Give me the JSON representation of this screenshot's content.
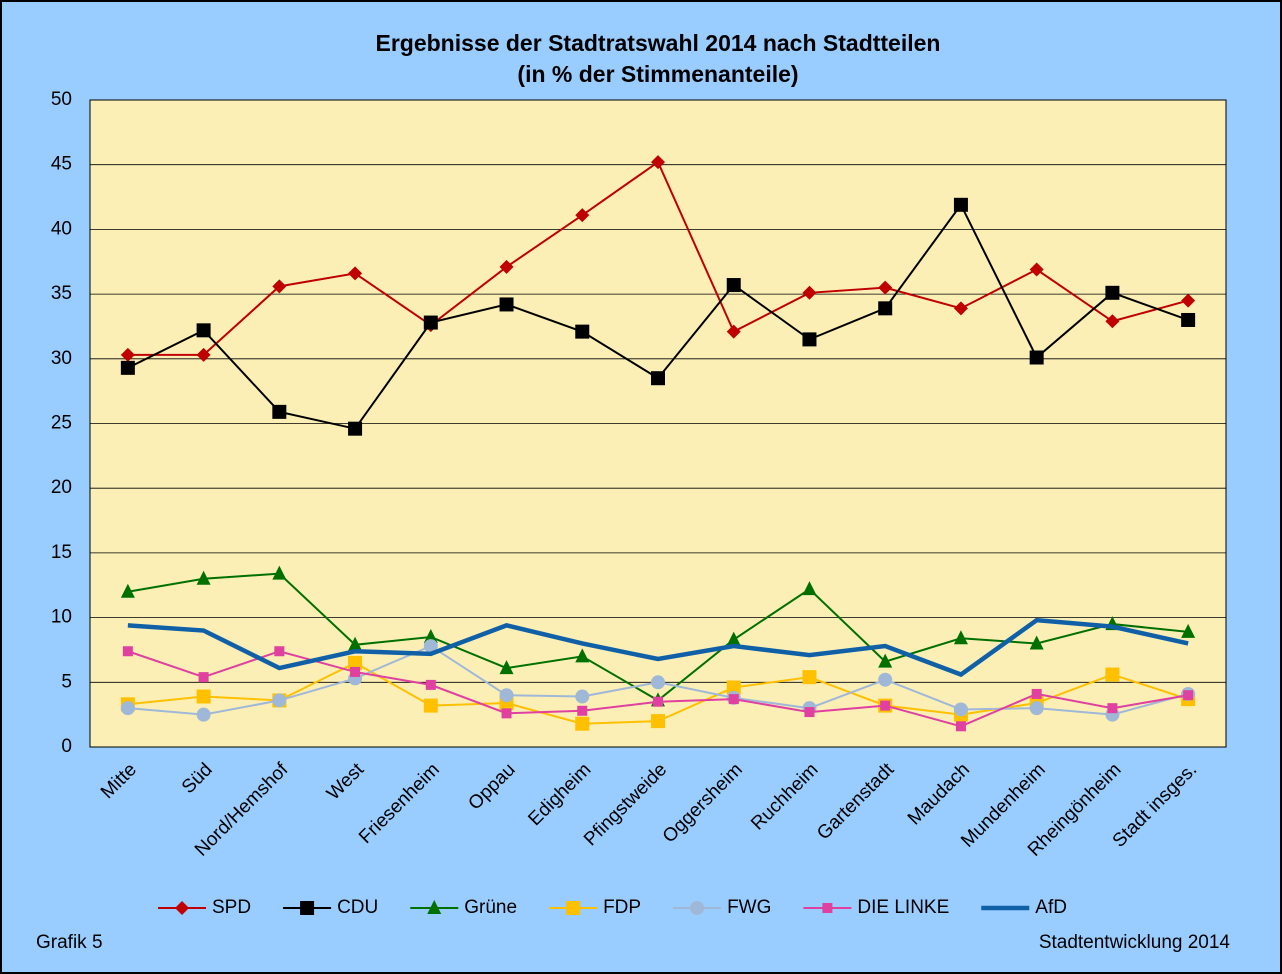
{
  "chart_data": {
    "type": "line",
    "title": [
      "Ergebnisse der Stadtratswahl 2014 nach Stadtteilen",
      "(in % der Stimmenanteile)"
    ],
    "categories": [
      "Mitte",
      "Süd",
      "Nord/Hemshof",
      "West",
      "Friesenheim",
      "Oppau",
      "Edigheim",
      "Pfingstweide",
      "Oggersheim",
      "Ruchheim",
      "Gartenstadt",
      "Maudach",
      "Mundenheim",
      "Rheingönheim",
      "Stadt insges."
    ],
    "series": [
      {
        "name": "SPD",
        "color": "#c00000",
        "marker": "diamond",
        "values": [
          30.3,
          30.3,
          35.6,
          36.6,
          32.6,
          37.1,
          41.1,
          45.2,
          32.1,
          35.1,
          35.5,
          33.9,
          36.9,
          32.9,
          34.5
        ]
      },
      {
        "name": "CDU",
        "color": "#000000",
        "marker": "square",
        "values": [
          29.3,
          32.2,
          25.9,
          24.6,
          32.8,
          34.2,
          32.1,
          28.5,
          35.7,
          31.5,
          33.9,
          41.9,
          30.1,
          35.1,
          33.0
        ]
      },
      {
        "name": "Grüne",
        "color": "#007000",
        "marker": "triangle",
        "values": [
          12.0,
          13.0,
          13.4,
          7.9,
          8.5,
          6.1,
          7.0,
          3.6,
          8.3,
          12.2,
          6.6,
          8.4,
          8.0,
          9.5,
          8.9
        ]
      },
      {
        "name": "FDP",
        "color": "#ffc000",
        "marker": "square",
        "values": [
          3.3,
          3.9,
          3.6,
          6.5,
          3.2,
          3.4,
          1.8,
          2.0,
          4.6,
          5.4,
          3.2,
          2.5,
          3.4,
          5.6,
          3.7
        ]
      },
      {
        "name": "FWG",
        "color": "#a0b8d8",
        "marker": "circle",
        "values": [
          3.0,
          2.5,
          3.6,
          5.3,
          7.8,
          4.0,
          3.9,
          5.0,
          3.8,
          3.0,
          5.2,
          2.9,
          3.0,
          2.5,
          4.1
        ]
      },
      {
        "name": "DIE LINKE",
        "color": "#e040a0",
        "marker": "small-square",
        "values": [
          7.4,
          5.4,
          7.4,
          5.8,
          4.8,
          2.6,
          2.8,
          3.5,
          3.7,
          2.7,
          3.2,
          1.6,
          4.1,
          3.0,
          4.0
        ]
      },
      {
        "name": "AfD",
        "color": "#1060a8",
        "marker": "none",
        "values": [
          9.4,
          9.0,
          6.1,
          7.4,
          7.2,
          9.4,
          8.0,
          6.8,
          7.8,
          7.1,
          7.8,
          5.6,
          9.8,
          9.3,
          8.0
        ]
      }
    ],
    "ylim": [
      0,
      50
    ],
    "yticks": [
      0,
      5,
      10,
      15,
      20,
      25,
      30,
      35,
      40,
      45,
      50
    ],
    "grid": true,
    "legend": "bottom",
    "notes": [
      "Grafik 5",
      "Stadtentwicklung 2014"
    ]
  }
}
